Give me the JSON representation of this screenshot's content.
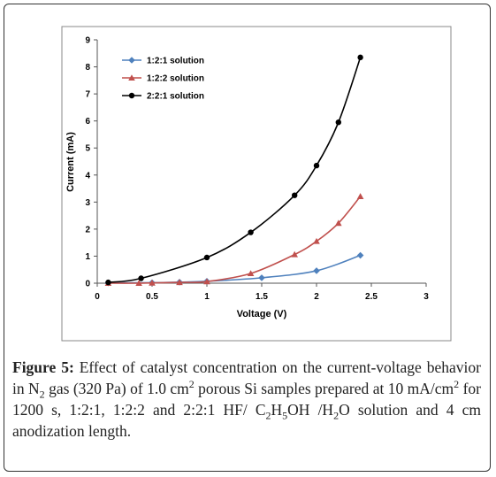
{
  "chart_data": {
    "type": "line",
    "xlabel": "Voltage (V)",
    "ylabel": "Current (mA)",
    "xlim": [
      0,
      3
    ],
    "ylim": [
      0,
      9
    ],
    "xticks": [
      "0",
      "0.5",
      "1",
      "1.5",
      "2",
      "2.5",
      "3"
    ],
    "yticks": [
      "0",
      "1",
      "2",
      "3",
      "4",
      "5",
      "6",
      "7",
      "8",
      "9"
    ],
    "grid": false,
    "legend_position": "top-left",
    "series": [
      {
        "name": "1:2:1 solution",
        "color": "#4f81bd",
        "marker": "diamond",
        "x": [
          0.1,
          0.5,
          0.75,
          1.0,
          1.5,
          2.0,
          2.4
        ],
        "y": [
          0.01,
          0.02,
          0.04,
          0.07,
          0.2,
          0.46,
          1.03
        ]
      },
      {
        "name": "1:2:2 solution",
        "color": "#c0504d",
        "marker": "triangle",
        "x": [
          0.1,
          0.38,
          0.5,
          0.75,
          1.0,
          1.4,
          1.8,
          2.0,
          2.2,
          2.4
        ],
        "y": [
          0.0,
          0.0,
          0.01,
          0.03,
          0.06,
          0.36,
          1.06,
          1.55,
          2.22,
          3.21
        ]
      },
      {
        "name": "2:2:1 solution",
        "color": "#000000",
        "marker": "circle",
        "x": [
          0.1,
          0.4,
          1.0,
          1.4,
          1.8,
          2.0,
          2.2,
          2.4
        ],
        "y": [
          0.03,
          0.18,
          0.95,
          1.88,
          3.25,
          4.35,
          5.95,
          8.35
        ]
      }
    ]
  },
  "caption": {
    "figure_label": "Figure 5:",
    "text_1": " Effect of catalyst concentration on the current-voltage behavior in N",
    "sub_1": "2",
    "text_2": " gas (320 Pa) of 1.0 cm",
    "sup_1": "2",
    "text_3": " porous Si samples prepared at 10 mA/cm",
    "sup_2": "2",
    "text_4": " for 1200 s, 1:2:1, 1:2:2 and 2:2:1 HF/ C",
    "sub_2": "2",
    "text_5": "H",
    "sub_3": "5",
    "text_6": "OH /H",
    "sub_4": "2",
    "text_7": "O solution and 4 cm anodization length."
  }
}
